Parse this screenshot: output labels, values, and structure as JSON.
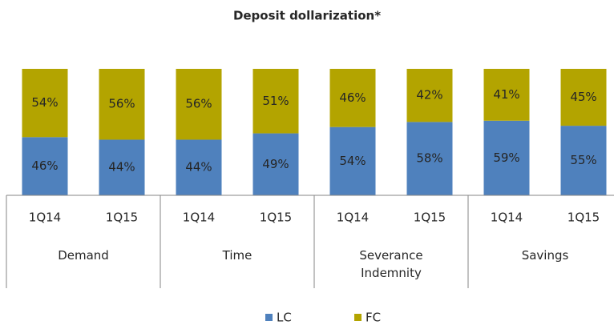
{
  "chart_data": {
    "type": "stacked_bar_100",
    "title": "Deposit dollarization*",
    "groups": [
      "Demand",
      "Time",
      "Severance Indemnity",
      "Savings"
    ],
    "categories": [
      "1Q14",
      "1Q15",
      "1Q14",
      "1Q15",
      "1Q14",
      "1Q15",
      "1Q14",
      "1Q15"
    ],
    "series": [
      {
        "name": "LC",
        "color": "#4f81bd",
        "values": [
          46,
          44,
          44,
          49,
          54,
          58,
          59,
          55
        ],
        "value_labels": [
          "46%",
          "44%",
          "44%",
          "49%",
          "54%",
          "58%",
          "59%",
          "55%"
        ]
      },
      {
        "name": "FC",
        "color": "#b3a400",
        "values": [
          54,
          56,
          56,
          51,
          46,
          42,
          41,
          45
        ],
        "value_labels": [
          "54%",
          "56%",
          "56%",
          "51%",
          "46%",
          "42%",
          "41%",
          "45%"
        ]
      }
    ],
    "legend": "bottom"
  }
}
